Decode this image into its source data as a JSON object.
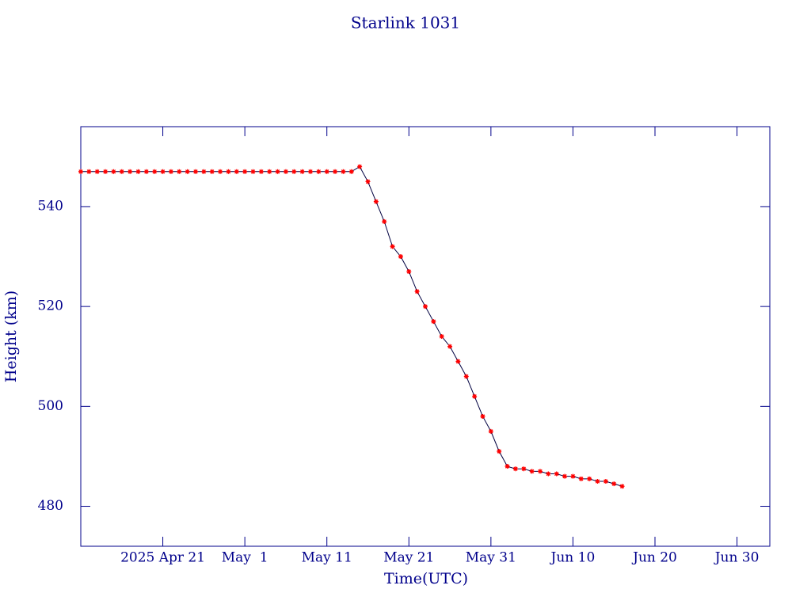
{
  "chart_data": {
    "type": "line",
    "title": "Starlink 1031",
    "x_label": "Time(UTC)",
    "y_label": "Height (km)",
    "x": [
      "2025-04-11",
      "2025-04-12",
      "2025-04-13",
      "2025-04-14",
      "2025-04-15",
      "2025-04-16",
      "2025-04-17",
      "2025-04-18",
      "2025-04-19",
      "2025-04-20",
      "2025-04-21",
      "2025-04-22",
      "2025-04-23",
      "2025-04-24",
      "2025-04-25",
      "2025-04-26",
      "2025-04-27",
      "2025-04-28",
      "2025-04-29",
      "2025-04-30",
      "2025-05-01",
      "2025-05-02",
      "2025-05-03",
      "2025-05-04",
      "2025-05-05",
      "2025-05-06",
      "2025-05-07",
      "2025-05-08",
      "2025-05-09",
      "2025-05-10",
      "2025-05-11",
      "2025-05-12",
      "2025-05-13",
      "2025-05-14",
      "2025-05-15",
      "2025-05-16",
      "2025-05-17",
      "2025-05-18",
      "2025-05-19",
      "2025-05-20",
      "2025-05-21",
      "2025-05-22",
      "2025-05-23",
      "2025-05-24",
      "2025-05-25",
      "2025-05-26",
      "2025-05-27",
      "2025-05-28",
      "2025-05-29",
      "2025-05-30",
      "2025-05-31",
      "2025-06-01",
      "2025-06-02",
      "2025-06-03",
      "2025-06-04",
      "2025-06-05",
      "2025-06-06",
      "2025-06-07",
      "2025-06-08",
      "2025-06-09",
      "2025-06-10",
      "2025-06-11",
      "2025-06-12",
      "2025-06-13",
      "2025-06-14",
      "2025-06-15",
      "2025-06-16"
    ],
    "series": [
      {
        "color": "#000040",
        "marker_color": "#ff0000",
        "values": [
          547,
          547,
          547,
          547,
          547,
          547,
          547,
          547,
          547,
          547,
          547,
          547,
          547,
          547,
          547,
          547,
          547,
          547,
          547,
          547,
          547,
          547,
          547,
          547,
          547,
          547,
          547,
          547,
          547,
          547,
          547,
          547,
          547,
          547,
          548,
          545,
          541,
          537,
          532,
          530,
          527,
          523,
          520,
          517,
          514,
          512,
          509,
          506,
          502,
          498,
          495,
          491,
          488,
          487.5,
          487.5,
          487,
          487,
          486.5,
          486.5,
          486,
          486,
          485.5,
          485.5,
          485,
          485,
          484.5,
          484
        ]
      }
    ],
    "xlim": [
      "2025-04-11",
      "2025-07-04"
    ],
    "xticks": [
      {
        "value": "2025-04-21",
        "label": "2025 Apr 21"
      },
      {
        "value": "2025-05-01",
        "label": "May  1"
      },
      {
        "value": "2025-05-11",
        "label": "May 11"
      },
      {
        "value": "2025-05-21",
        "label": "May 21"
      },
      {
        "value": "2025-05-31",
        "label": "May 31"
      },
      {
        "value": "2025-06-10",
        "label": "Jun 10"
      },
      {
        "value": "2025-06-20",
        "label": "Jun 20"
      },
      {
        "value": "2025-06-30",
        "label": "Jun 30"
      }
    ],
    "ylim": [
      472,
      556
    ],
    "yticks": [
      480,
      500,
      520,
      540
    ],
    "axis_color": "#00008b"
  }
}
